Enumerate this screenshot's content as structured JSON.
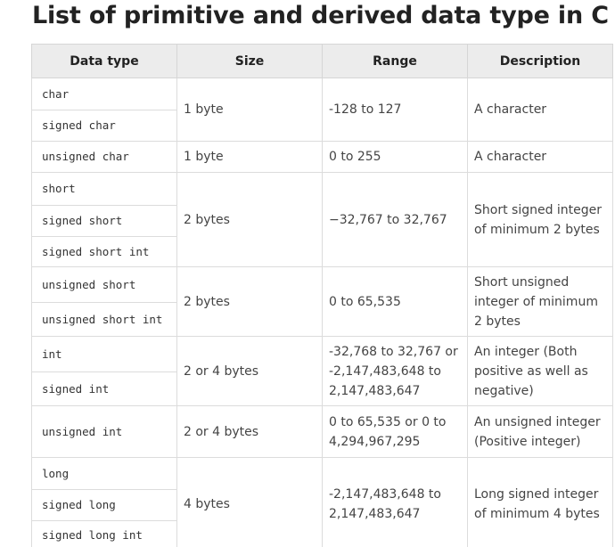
{
  "title": "List of primitive and derived data type in C",
  "headers": [
    "Data type",
    "Size",
    "Range",
    "Description"
  ],
  "rows": [
    {
      "types": [
        "char",
        "signed char"
      ],
      "size": "1 byte",
      "range": "-128 to 127",
      "description": "A character"
    },
    {
      "types": [
        "unsigned char"
      ],
      "size": "1 byte",
      "range": "0 to 255",
      "description": "A character"
    },
    {
      "types": [
        "short",
        "signed short",
        "signed short int"
      ],
      "size": "2 bytes",
      "range": "−32,767 to 32,767",
      "description": "Short signed integer of minimum 2 bytes"
    },
    {
      "types": [
        "unsigned short",
        "unsigned short int"
      ],
      "size": "2 bytes",
      "range": "0 to 65,535",
      "description": "Short unsigned integer of minimum 2 bytes"
    },
    {
      "types": [
        "int",
        "signed int"
      ],
      "size": "2 or 4 bytes",
      "range": "-32,768 to 32,767 or -2,147,483,648 to 2,147,483,647",
      "description": "An integer (Both positive as well as negative)"
    },
    {
      "types": [
        "unsigned int"
      ],
      "size": "2 or 4 bytes",
      "range": "0 to 65,535 or 0 to 4,294,967,295",
      "description": "An unsigned integer (Positive integer)"
    },
    {
      "types": [
        "long",
        "signed long",
        "signed long int"
      ],
      "size": "4 bytes",
      "range": "-2,147,483,648 to 2,147,483,647",
      "description": "Long signed integer of minimum 4 bytes"
    }
  ]
}
